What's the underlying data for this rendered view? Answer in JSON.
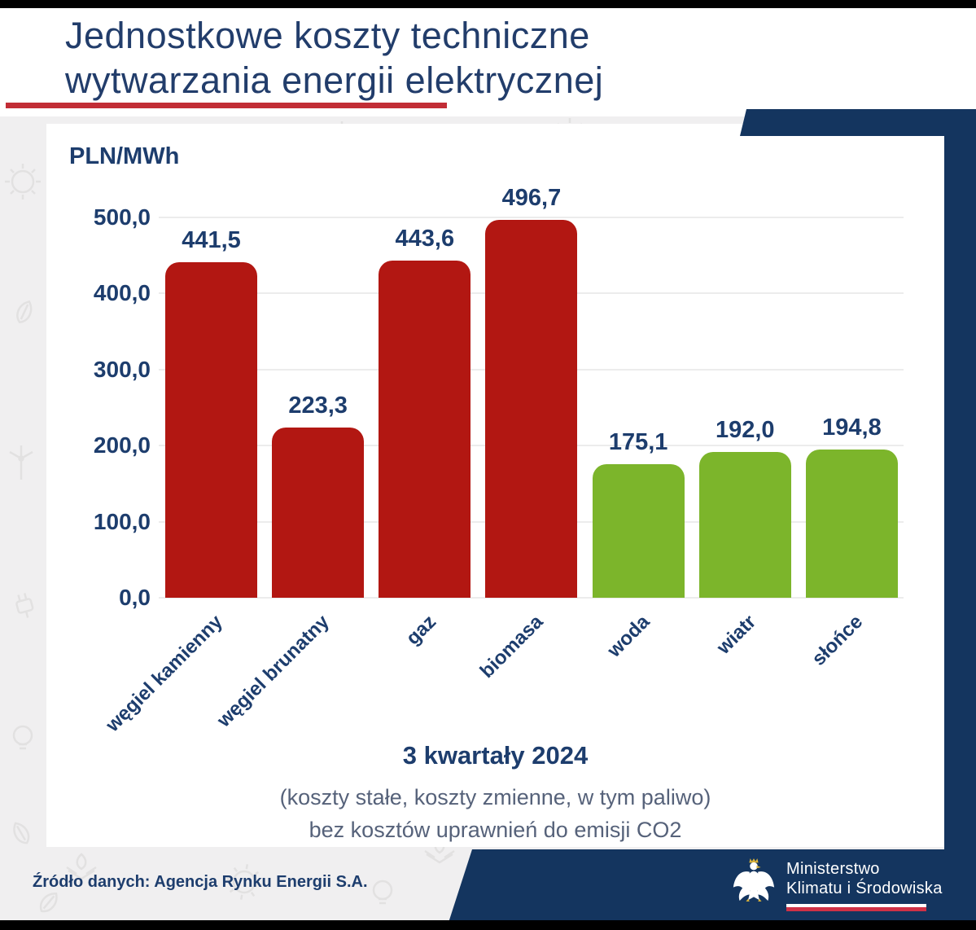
{
  "header": {
    "title_line1": "Jednostkowe koszty techniczne",
    "title_line2": "wytwarzania energii elektrycznej"
  },
  "chart_data": {
    "type": "bar",
    "title": "Jednostkowe koszty techniczne wytwarzania energii elektrycznej",
    "unit_label": "PLN/MWh",
    "categories": [
      "węgiel kamienny",
      "węgiel brunatny",
      "gaz",
      "biomasa",
      "woda",
      "wiatr",
      "słońce"
    ],
    "values": [
      441.5,
      223.3,
      443.6,
      496.7,
      175.1,
      192.0,
      194.8
    ],
    "value_labels": [
      "441,5",
      "223,3",
      "443,6",
      "496,7",
      "175,1",
      "192,0",
      "194,8"
    ],
    "bar_colors": [
      "#b21712",
      "#b21712",
      "#b21712",
      "#b21712",
      "#7cb52b",
      "#7cb52b",
      "#7cb52b"
    ],
    "y_ticks": [
      "500,0",
      "400,0",
      "300,0",
      "200,0",
      "100,0",
      "0,0"
    ],
    "ylim": [
      0,
      500
    ],
    "grid": "horizontal, light gray",
    "legend": "none",
    "caption": "3 kwartały 2024",
    "subcaption_line1": "(koszty stałe, koszty zmienne, w tym paliwo)",
    "subcaption_line2": "bez kosztów uprawnień do emisji CO2"
  },
  "footer": {
    "source": "Źródło danych: Agencja Rynku Energii S.A.",
    "ministry_line1": "Ministerstwo",
    "ministry_line2": "Klimatu i Środowiska"
  },
  "colors": {
    "bar_red": "#b21712",
    "bar_green": "#7cb52b",
    "navy_band": "#14355f",
    "text_navy": "#1d3d6d",
    "title_navy": "#223d6b",
    "subcaption_gray": "#56627a",
    "red_underline": "#c22d36",
    "backdrop_gray": "#f0eff0",
    "flag_red": "#cf3146"
  }
}
